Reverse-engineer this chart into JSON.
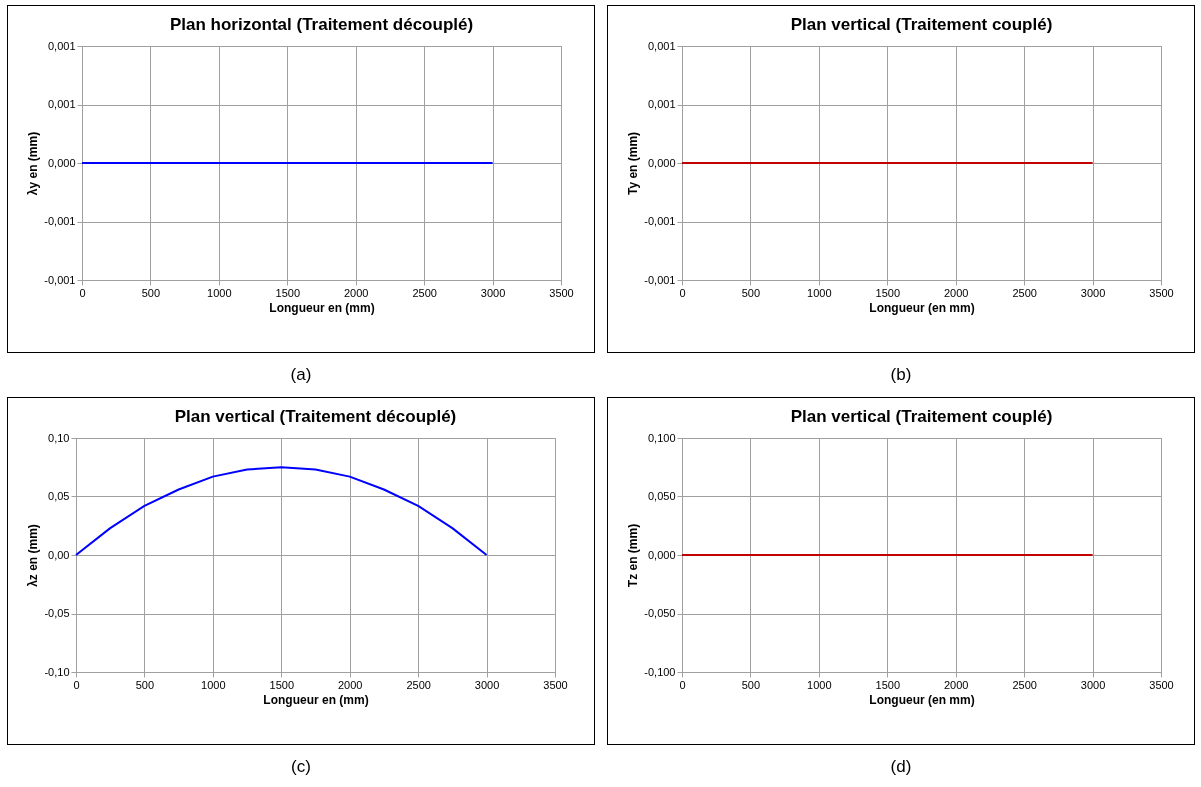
{
  "chart_data": [
    {
      "type": "line",
      "title": "Plan horizontal (Traitement découplé)",
      "xlabel": "Longueur  en (mm)",
      "ylabel": "λy en (mm)",
      "x": [
        0,
        500,
        1000,
        1500,
        2000,
        2500,
        3000
      ],
      "series": [
        {
          "color": "#0000ff",
          "values": [
            0,
            0,
            0,
            0,
            0,
            0,
            0
          ]
        }
      ],
      "xlim": [
        0,
        3500
      ],
      "xticks": [
        0,
        500,
        1000,
        1500,
        2000,
        2500,
        3000,
        3500
      ],
      "ylim": [
        -0.001,
        0.001
      ],
      "yticks": [
        {
          "value": -0.001,
          "label": "-0,001"
        },
        {
          "value": -0.0005,
          "label": "-0,001"
        },
        {
          "value": 0,
          "label": "0,000"
        },
        {
          "value": 0.0005,
          "label": "0,001"
        },
        {
          "value": 0.001,
          "label": "0,001"
        }
      ],
      "grid": true,
      "annotations": [
        "(a)"
      ]
    },
    {
      "type": "line",
      "title": "Plan vertical (Traitement couplé)",
      "xlabel": "Longueur (en mm)",
      "ylabel": "Ty en (mm)",
      "x": [
        0,
        500,
        1000,
        1500,
        2000,
        2500,
        3000
      ],
      "series": [
        {
          "color": "#c00000",
          "values": [
            0,
            0,
            0,
            0,
            0,
            0,
            0
          ]
        }
      ],
      "xlim": [
        0,
        3500
      ],
      "xticks": [
        0,
        500,
        1000,
        1500,
        2000,
        2500,
        3000,
        3500
      ],
      "ylim": [
        -0.001,
        0.001
      ],
      "yticks": [
        {
          "value": -0.001,
          "label": "-0,001"
        },
        {
          "value": -0.0005,
          "label": "-0,001"
        },
        {
          "value": 0,
          "label": "0,000"
        },
        {
          "value": 0.0005,
          "label": "0,001"
        },
        {
          "value": 0.001,
          "label": "0,001"
        }
      ],
      "grid": true,
      "annotations": [
        "(b)"
      ]
    },
    {
      "type": "line",
      "title": "Plan vertical (Traitement découplé)",
      "xlabel": "Longueur en (mm)",
      "ylabel": "λz en (mm)",
      "x": [
        0,
        250,
        500,
        750,
        1000,
        1250,
        1500,
        1750,
        2000,
        2250,
        2500,
        2750,
        3000
      ],
      "series": [
        {
          "color": "#0000ff",
          "values": [
            0,
            0.023,
            0.042,
            0.056,
            0.067,
            0.073,
            0.075,
            0.073,
            0.067,
            0.056,
            0.042,
            0.023,
            0
          ]
        }
      ],
      "xlim": [
        0,
        3500
      ],
      "xticks": [
        0,
        500,
        1000,
        1500,
        2000,
        2500,
        3000,
        3500
      ],
      "ylim": [
        -0.1,
        0.1
      ],
      "yticks": [
        {
          "value": -0.1,
          "label": "-0,10"
        },
        {
          "value": -0.05,
          "label": "-0,05"
        },
        {
          "value": 0,
          "label": "0,00"
        },
        {
          "value": 0.05,
          "label": "0,05"
        },
        {
          "value": 0.1,
          "label": "0,10"
        }
      ],
      "grid": true,
      "annotations": [
        "(c)"
      ]
    },
    {
      "type": "line",
      "title": "Plan vertical (Traitement couplé)",
      "xlabel": "Longueur (en mm)",
      "ylabel": "Tz en (mm)",
      "x": [
        0,
        500,
        1000,
        1500,
        2000,
        2500,
        3000
      ],
      "series": [
        {
          "color": "#c00000",
          "values": [
            0,
            0,
            0,
            0,
            0,
            0,
            0
          ]
        }
      ],
      "xlim": [
        0,
        3500
      ],
      "xticks": [
        0,
        500,
        1000,
        1500,
        2000,
        2500,
        3000,
        3500
      ],
      "ylim": [
        -0.1,
        0.1
      ],
      "yticks": [
        {
          "value": -0.1,
          "label": "-0,100"
        },
        {
          "value": -0.05,
          "label": "-0,050"
        },
        {
          "value": 0,
          "label": "0,000"
        },
        {
          "value": 0.05,
          "label": "0,050"
        },
        {
          "value": 0.1,
          "label": "0,100"
        }
      ],
      "grid": true,
      "annotations": [
        "(d)"
      ]
    }
  ]
}
